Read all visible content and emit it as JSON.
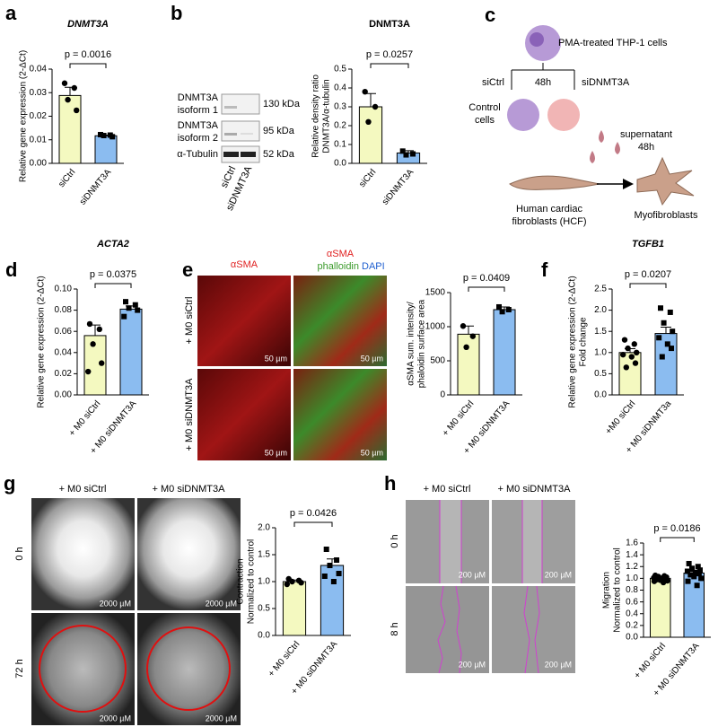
{
  "panel_labels": [
    "a",
    "b",
    "c",
    "d",
    "e",
    "f",
    "g",
    "h"
  ],
  "blot": {
    "rows": [
      [
        "DNMT3A",
        "isoform 1"
      ],
      [
        "DNMT3A",
        "isoform 2"
      ],
      [
        "α-Tubulin"
      ]
    ],
    "sizes": [
      "130 kDa",
      "95 kDa",
      "52 kDa"
    ],
    "lanes": [
      "siCtrl",
      "siDNMT3A"
    ]
  },
  "diagram": {
    "source": "PMA-treated THP-1 cells",
    "left": "siCtrl",
    "time": "48h",
    "right": "siDNMT3A",
    "control": [
      "Control",
      "cells"
    ],
    "supernatant": [
      "supernatant",
      "48h"
    ],
    "hcf": [
      "Human cardiac",
      "fibroblasts (HCF)"
    ],
    "myo": "Myofibroblasts"
  },
  "panel_e": {
    "col1": "αSMA",
    "col2": "αSMA",
    "col2b": [
      "phalloidin",
      "DAPI"
    ],
    "rows": [
      "+ M0 siCtrl",
      "+ M0 siDNMT3A"
    ],
    "scale": [
      "50 µm",
      "50 µm",
      "50 µm",
      "50 µm"
    ]
  },
  "panel_g": {
    "cols": [
      "+ M0 siCtrl",
      "+ M0 siDNMT3A"
    ],
    "rows": [
      "0 h",
      "72 h"
    ],
    "scale": [
      "2000 µM",
      "2000 µM",
      "2000 µM",
      "2000 µM"
    ]
  },
  "panel_h": {
    "cols": [
      "+ M0 siCtrl",
      "+ M0 siDNMT3A"
    ],
    "rows": [
      "0 h",
      "8 h"
    ],
    "scale": [
      "200 µM",
      "200 µM",
      "200 µM",
      "200 µM"
    ]
  },
  "chart_data": [
    {
      "type": "bar",
      "title": "DNMT3A",
      "ylabel": [
        "Relative gene expression (2-ΔCt)"
      ],
      "categories": [
        "siCtrl",
        "siDNMT3A"
      ],
      "values": [
        0.0288,
        0.0117
      ],
      "errors": [
        0.0035,
        0.0003
      ],
      "points": [
        [
          0.034,
          0.032,
          0.027,
          0.0225
        ],
        [
          0.0122,
          0.012,
          0.0118,
          0.0113
        ]
      ],
      "colors": [
        "#f4f9c0",
        "#8bbcf0"
      ],
      "markers": [
        "circle",
        "square"
      ],
      "ylim": [
        0,
        0.04
      ],
      "yticks": [
        {
          "value": 0,
          "label": "0.00"
        },
        0.01,
        0.02,
        0.03,
        0.04
      ],
      "annotation": "p = 0.0016"
    },
    {
      "type": "bar",
      "title": "DNMT3A",
      "ylabel": [
        "Relative density ratio",
        "DNMT3A/α-tubulin"
      ],
      "categories": [
        "siCtrl",
        "siDNMT3A"
      ],
      "values": [
        0.3,
        0.055
      ],
      "errors": [
        0.07,
        0.012
      ],
      "points": [
        [
          0.38,
          0.3,
          0.22
        ],
        [
          0.065,
          0.05,
          0.045
        ]
      ],
      "colors": [
        "#f4f9c0",
        "#8bbcf0"
      ],
      "markers": [
        "circle",
        "square"
      ],
      "ylim": [
        0,
        0.5
      ],
      "yticks": [
        {
          "value": 0,
          "label": "0.0"
        },
        0.1,
        0.2,
        0.3,
        0.4,
        0.5
      ],
      "annotation": "p = 0.0257"
    },
    {
      "type": "bar",
      "title": "ACTA2",
      "ylabel": [
        "Relative gene expression (2-ΔCt)"
      ],
      "categories": [
        "+ M0 siCtrl",
        "+ M0 siDNMT3A"
      ],
      "values": [
        0.056,
        0.081
      ],
      "errors": [
        0.01,
        0.003
      ],
      "points": [
        [
          0.067,
          0.062,
          0.048,
          0.03,
          0.022
        ],
        [
          0.088,
          0.085,
          0.082,
          0.08,
          0.074
        ]
      ],
      "colors": [
        "#f4f9c0",
        "#8bbcf0"
      ],
      "markers": [
        "circle",
        "square"
      ],
      "ylim": [
        0,
        0.1
      ],
      "yticks": [
        {
          "value": 0,
          "label": "0.00"
        },
        0.02,
        0.04,
        0.06,
        0.08,
        {
          "value": 0.1,
          "label": "0.10"
        }
      ],
      "annotation": "p = 0.0375"
    },
    {
      "type": "bar",
      "ylabel": [
        "αSMA sum. intensity/",
        "phaloidin surface area"
      ],
      "categories": [
        "+ M0 siCtrl",
        "+ M0 siDNMT3A"
      ],
      "values": [
        890,
        1250
      ],
      "errors": [
        120,
        40
      ],
      "points": [
        [
          1010,
          860,
          700
        ],
        [
          1290,
          1250,
          1220
        ]
      ],
      "colors": [
        "#f4f9c0",
        "#8bbcf0"
      ],
      "markers": [
        "circle",
        "square"
      ],
      "ylim": [
        0,
        1500
      ],
      "yticks": [
        0,
        500,
        1000,
        1500
      ],
      "annotation": "p = 0.0409"
    },
    {
      "type": "bar",
      "title": "TGFB1",
      "ylabel": [
        "Relative gene expression (2-ΔCt)",
        "Fold change"
      ],
      "categories": [
        "+M0 siCtrl",
        "+ M0 siDNMT3a"
      ],
      "values": [
        1.0,
        1.45
      ],
      "errors": [
        0.09,
        0.15
      ],
      "points": [
        [
          1.3,
          1.2,
          1.1,
          1.0,
          0.95,
          0.9,
          0.75,
          0.65
        ],
        [
          2.05,
          1.95,
          1.7,
          1.5,
          1.35,
          1.2,
          1.1,
          0.9
        ]
      ],
      "colors": [
        "#f4f9c0",
        "#8bbcf0"
      ],
      "markers": [
        "circle",
        "square"
      ],
      "ylim": [
        0,
        2.5
      ],
      "yticks": [
        {
          "value": 0,
          "label": "0.0"
        },
        0.5,
        {
          "value": 1,
          "label": "1.0"
        },
        1.5,
        {
          "value": 2,
          "label": "2.0"
        },
        2.5
      ],
      "annotation": "p = 0.0207"
    },
    {
      "type": "bar",
      "ylabel": [
        "Contraction",
        "Normalized to control"
      ],
      "categories": [
        "+ M0 siCtrl",
        "+ M0 siDNMT3A"
      ],
      "values": [
        1.0,
        1.3
      ],
      "errors": [
        0.03,
        0.12
      ],
      "points": [
        [
          1.05,
          1.02,
          1.0,
          0.98,
          0.95
        ],
        [
          1.6,
          1.4,
          1.3,
          1.15,
          1.1,
          1.0
        ]
      ],
      "colors": [
        "#f4f9c0",
        "#8bbcf0"
      ],
      "markers": [
        "circle",
        "square"
      ],
      "ylim": [
        0,
        2
      ],
      "yticks": [
        {
          "value": 0,
          "label": "0.0"
        },
        0.5,
        {
          "value": 1,
          "label": "1.0"
        },
        1.5,
        {
          "value": 2,
          "label": "2.0"
        }
      ],
      "annotation": "p = 0.0426"
    },
    {
      "type": "bar",
      "ylabel": [
        "Migration",
        "Normalized to control"
      ],
      "categories": [
        "+ M0 siCtrl",
        "+ M0 siDNMT3A"
      ],
      "values": [
        1.0,
        1.09
      ],
      "errors": [
        0.015,
        0.03
      ],
      "points": [
        [
          1.05,
          1.04,
          1.03,
          1.02,
          1.01,
          1.0,
          0.99,
          0.98,
          0.97,
          0.96,
          0.95,
          0.93
        ],
        [
          1.25,
          1.2,
          1.17,
          1.14,
          1.12,
          1.1,
          1.08,
          1.06,
          1.03,
          1.0,
          0.95,
          0.88
        ]
      ],
      "colors": [
        "#f4f9c0",
        "#8bbcf0"
      ],
      "markers": [
        "circle",
        "square"
      ],
      "ylim": [
        0,
        1.6
      ],
      "yticks": [
        {
          "value": 0,
          "label": "0.0"
        },
        0.2,
        0.4,
        0.6,
        0.8,
        {
          "value": 1,
          "label": "1.0"
        },
        1.2,
        1.4,
        1.6
      ],
      "annotation": "p = 0.0186"
    }
  ]
}
